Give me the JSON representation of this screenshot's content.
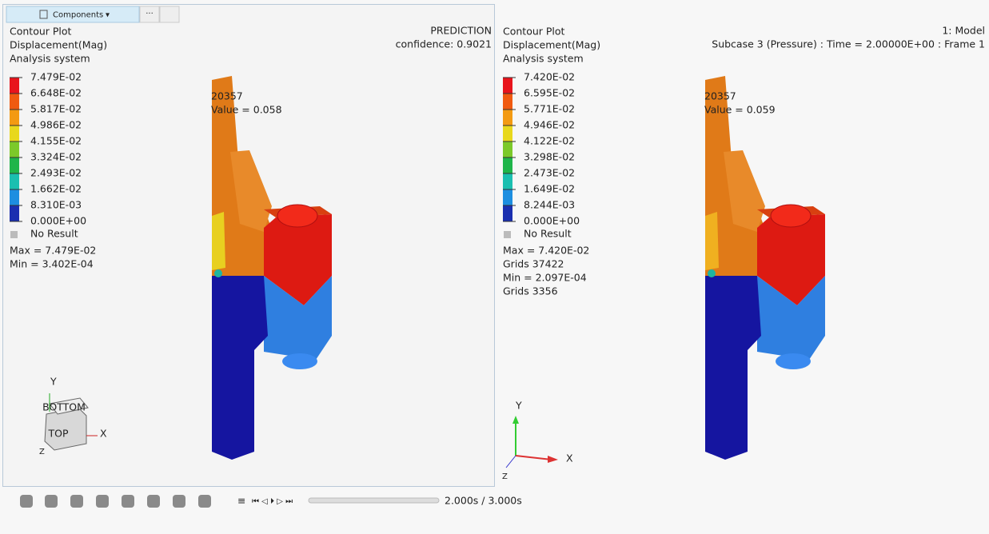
{
  "toolbar": {
    "tab": "Components",
    "more": "···"
  },
  "left": {
    "lines": [
      "Contour Plot",
      "Displacement(Mag)",
      "Analysis system"
    ],
    "header": [
      "PREDICTION",
      "confidence: 0.9021"
    ],
    "legend": [
      "7.479E-02",
      "6.648E-02",
      "5.817E-02",
      "4.986E-02",
      "4.155E-02",
      "3.324E-02",
      "2.493E-02",
      "1.662E-02",
      "8.310E-03",
      "0.000E+00"
    ],
    "no_result": "No Result",
    "stats": [
      "Max = 7.479E-02",
      "Min = 3.402E-04"
    ],
    "probe": [
      "20357",
      "Value = 0.058"
    ],
    "axes": {
      "y": "Y",
      "x": "X",
      "z": "Z"
    },
    "cube": [
      "BOTTOM",
      "TOP"
    ]
  },
  "right": {
    "lines": [
      "Contour Plot",
      "Displacement(Mag)",
      "Analysis system"
    ],
    "header": [
      "1: Model",
      "Subcase 3 (Pressure) : Time = 2.00000E+00 : Frame 1"
    ],
    "legend": [
      "7.420E-02",
      "6.595E-02",
      "5.771E-02",
      "4.946E-02",
      "4.122E-02",
      "3.298E-02",
      "2.473E-02",
      "1.649E-02",
      "8.244E-03",
      "0.000E+00"
    ],
    "no_result": "No Result",
    "stats": [
      "Max = 7.420E-02",
      "Grids 37422",
      "Min = 2.097E-04",
      "Grids 3356"
    ],
    "probe": [
      "20357",
      "Value = 0.059"
    ],
    "axes": {
      "y": "Y",
      "x": "X",
      "z": "Z"
    }
  },
  "playback": {
    "time": "2.000s / 3.000s"
  }
}
